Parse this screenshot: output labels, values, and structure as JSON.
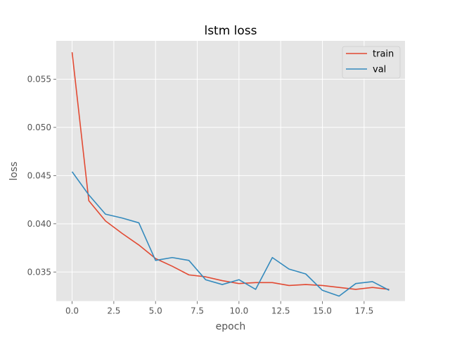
{
  "chart_data": {
    "type": "line",
    "title": "lstm loss",
    "xlabel": "epoch",
    "ylabel": "loss",
    "xlim": [
      -0.95,
      19.95
    ],
    "ylim": [
      0.03198,
      0.05898
    ],
    "grid": true,
    "legend_position": "top-right",
    "x": [
      0,
      1,
      2,
      3,
      4,
      5,
      6,
      7,
      8,
      9,
      10,
      11,
      12,
      13,
      14,
      15,
      16,
      17,
      18,
      19
    ],
    "xticks": [
      {
        "value": 0.0,
        "label": "0.0"
      },
      {
        "value": 2.5,
        "label": "2.5"
      },
      {
        "value": 5.0,
        "label": "5.0"
      },
      {
        "value": 7.5,
        "label": "7.5"
      },
      {
        "value": 10.0,
        "label": "10.0"
      },
      {
        "value": 12.5,
        "label": "12.5"
      },
      {
        "value": 15.0,
        "label": "15.0"
      },
      {
        "value": 17.5,
        "label": "17.5"
      }
    ],
    "yticks": [
      {
        "value": 0.035,
        "label": "0.035"
      },
      {
        "value": 0.04,
        "label": "0.040"
      },
      {
        "value": 0.045,
        "label": "0.045"
      },
      {
        "value": 0.05,
        "label": "0.050"
      },
      {
        "value": 0.055,
        "label": "0.055"
      }
    ],
    "series": [
      {
        "name": "train",
        "color": "#E24A33",
        "values": [
          0.0578,
          0.0424,
          0.0403,
          0.039,
          0.0378,
          0.0364,
          0.0356,
          0.0347,
          0.0345,
          0.0341,
          0.0338,
          0.0339,
          0.0339,
          0.0336,
          0.0337,
          0.0336,
          0.0334,
          0.0332,
          0.0334,
          0.0332
        ]
      },
      {
        "name": "val",
        "color": "#348ABD",
        "values": [
          0.0454,
          0.043,
          0.041,
          0.0406,
          0.0401,
          0.0362,
          0.0365,
          0.0362,
          0.0342,
          0.0337,
          0.0342,
          0.0332,
          0.0365,
          0.0353,
          0.0348,
          0.0331,
          0.0325,
          0.0338,
          0.034,
          0.0331
        ]
      }
    ]
  }
}
